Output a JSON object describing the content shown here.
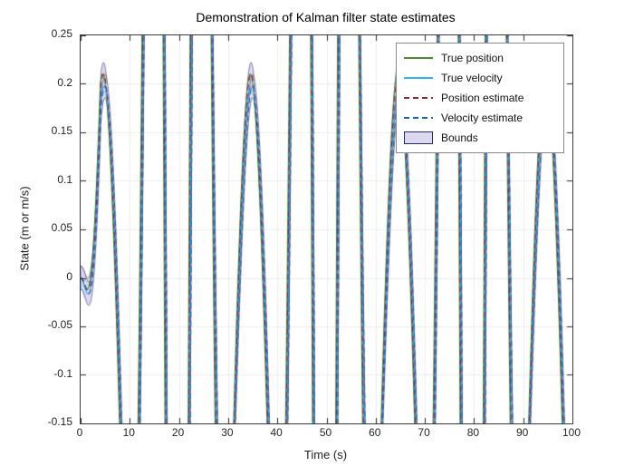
{
  "chart_data": {
    "type": "line",
    "title": "Demonstration of Kalman filter state estimates",
    "xlabel": "Time (s)",
    "ylabel": "State (m or m/s)",
    "xlim": [
      0,
      100
    ],
    "ylim": [
      -0.15,
      0.25
    ],
    "xticks": [
      0,
      10,
      20,
      30,
      40,
      50,
      60,
      70,
      80,
      90,
      100
    ],
    "xtick_labels": [
      "0",
      "10",
      "20",
      "30",
      "40",
      "50",
      "60",
      "70",
      "80",
      "90",
      "100"
    ],
    "yticks": [
      -0.15,
      -0.1,
      -0.05,
      0,
      0.05,
      0.1,
      0.15,
      0.2,
      0.25
    ],
    "ytick_labels": [
      "-0.15",
      "-0.1",
      "-0.05",
      "0",
      "0.05",
      "0.1",
      "0.15",
      "0.2",
      "0.25"
    ],
    "grid": true,
    "legend_position": "upper-right",
    "series": [
      {
        "name": "True position",
        "style": "solid",
        "color": "#4c8a2e"
      },
      {
        "name": "True velocity",
        "style": "solid",
        "color": "#30b3e6"
      },
      {
        "name": "Position estimate",
        "style": "dashed",
        "color": "#93242e"
      },
      {
        "name": "Velocity estimate",
        "style": "dashed",
        "color": "#1166cc"
      },
      {
        "name": "Bounds",
        "style": "band",
        "fill": "#dcd8ef",
        "edge": "#2a2a72"
      }
    ],
    "generator": {
      "description": "Oscillatory position/velocity states with a beating amplitude envelope; most cycles exceed the y-axis limits and are clipped, producing dense near-vertical traces. Envelope minima near t=4.5 s and t=34.5 s leave visible peaks of about 0.19-0.23; estimates track the true states closely (dashed), with a thin confidence band (Bounds).",
      "carrier_period_s": 10,
      "carrier_zero_s": 2,
      "envelope_base": 0.21,
      "envelope_beat": 1.6,
      "envelope_node_s": 4.5,
      "envelope_node_spacing_s": 30,
      "envelope_exponent": 3,
      "startup_ramp_s": 4,
      "ramp_exponent": 2,
      "velocity_scale": 0.94,
      "velocity_shift_s": 0.3,
      "estimate_lag_s": 0.15,
      "bounds_halfwidth": 0.012
    },
    "visible_peaks": [
      {
        "t": 4.3,
        "value": 0.19
      },
      {
        "t": 34.5,
        "value": 0.23
      }
    ]
  }
}
